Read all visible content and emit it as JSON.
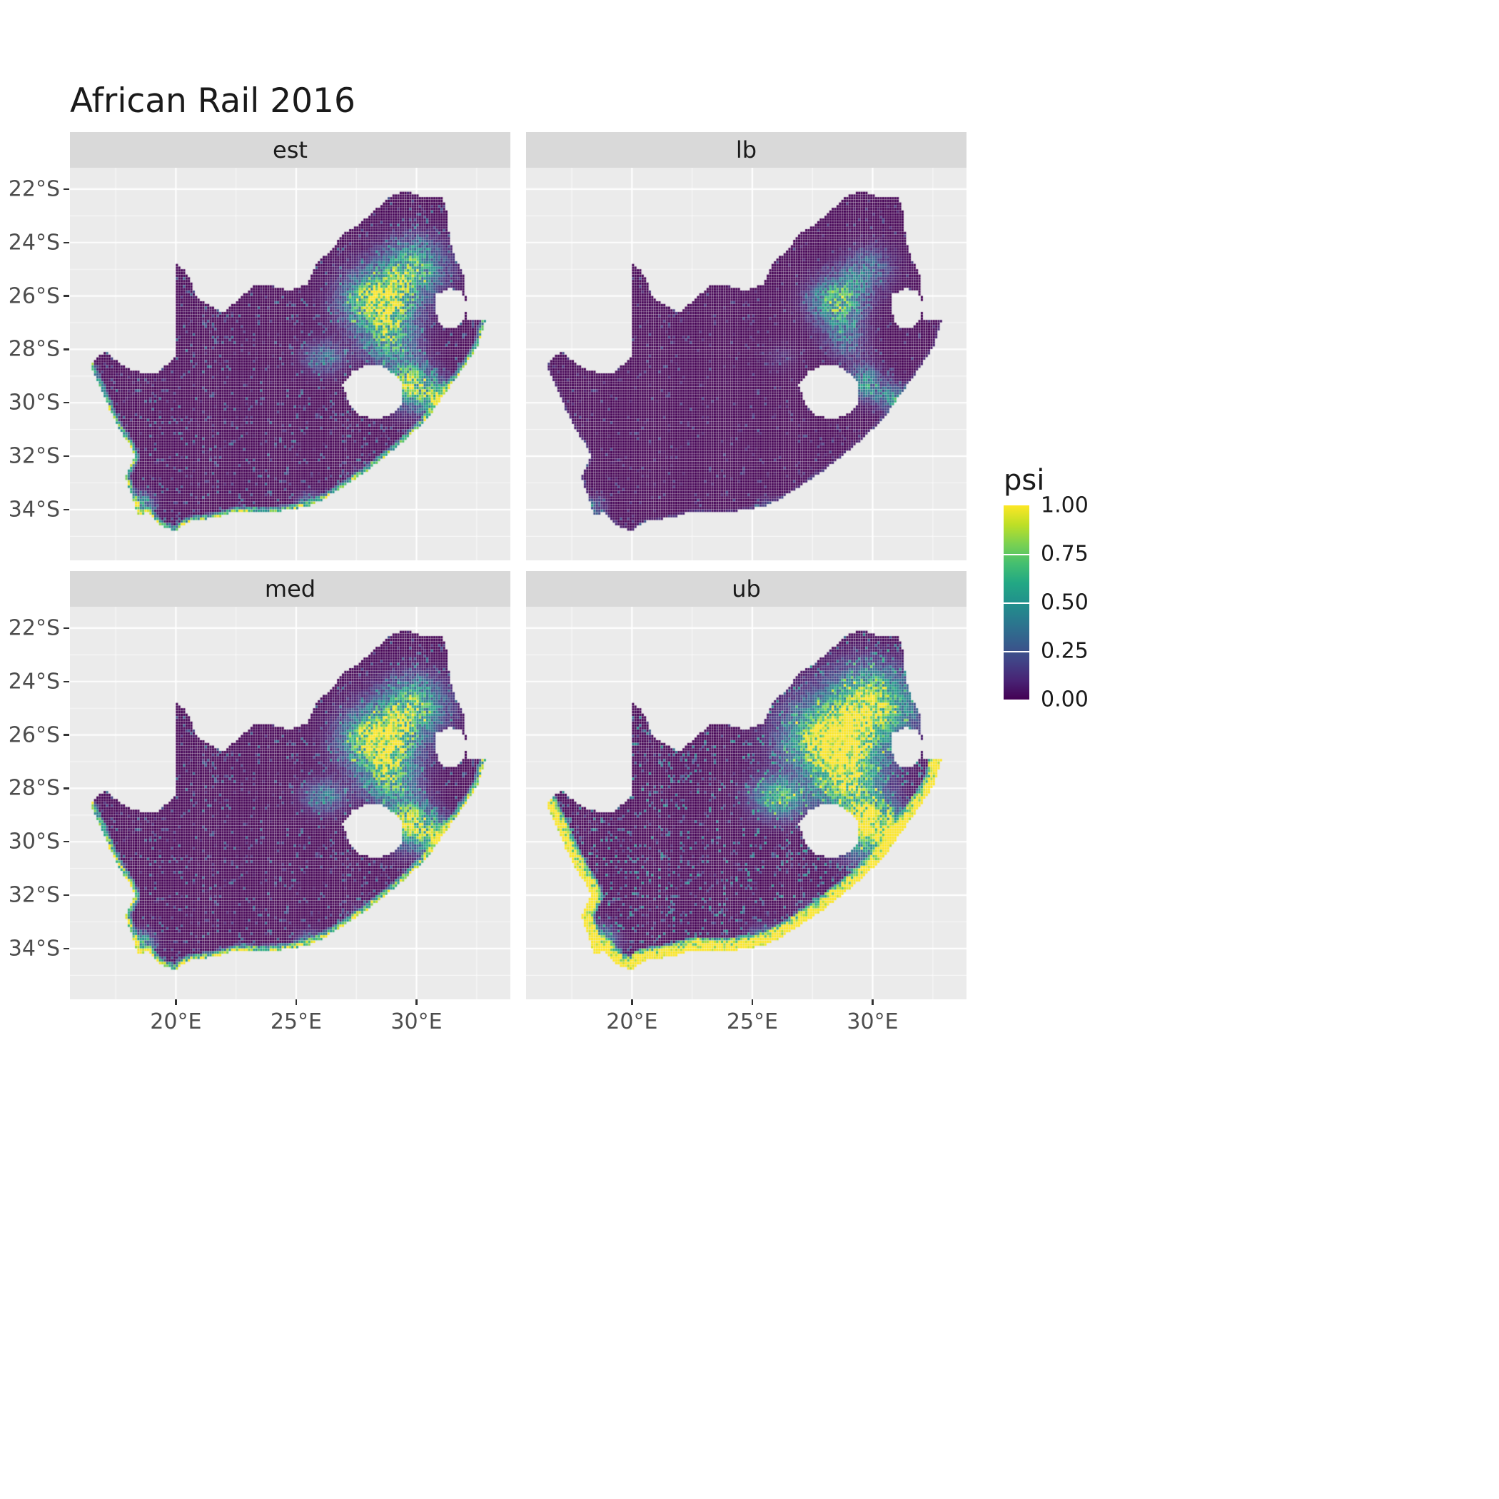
{
  "title": "African Rail 2016",
  "colors": {
    "background": "#FFFFFF",
    "panel_bg": "#EBEBEB",
    "strip_bg": "#D9D9D9",
    "gridline_major": "#FFFFFF",
    "gridline_minor": "rgba(255,255,255,0.7)",
    "axis_text": "#4D4D4D",
    "tick_mark": "#333333",
    "title_text": "#1A1A1A"
  },
  "chart_data": {
    "type": "heatmap",
    "subtype": "faceted_raster_map",
    "title": "African Rail 2016",
    "region": "South Africa",
    "facets": [
      "est",
      "lb",
      "med",
      "ub"
    ],
    "x": {
      "label": "",
      "range_deg": [
        15.6,
        33.9
      ],
      "ticks": [
        {
          "v": 20,
          "label": "20°E"
        },
        {
          "v": 25,
          "label": "25°E"
        },
        {
          "v": 30,
          "label": "30°E"
        }
      ],
      "minor_deg": [
        17.5,
        22.5,
        27.5,
        32.5
      ]
    },
    "y": {
      "label": "",
      "range_deg": [
        -35.9,
        -21.2
      ],
      "ticks": [
        {
          "v": -22,
          "label": "22°S"
        },
        {
          "v": -24,
          "label": "24°S"
        },
        {
          "v": -26,
          "label": "26°S"
        },
        {
          "v": -28,
          "label": "28°S"
        },
        {
          "v": -30,
          "label": "30°S"
        },
        {
          "v": -32,
          "label": "32°S"
        },
        {
          "v": -34,
          "label": "34°S"
        }
      ],
      "minor_deg": [
        -23,
        -25,
        -27,
        -29,
        -31,
        -33,
        -35
      ]
    },
    "legend": {
      "title": "psi",
      "position": "right",
      "range": [
        0,
        1
      ],
      "breaks": [
        {
          "v": 1.0,
          "label": "1.00"
        },
        {
          "v": 0.75,
          "label": "0.75"
        },
        {
          "v": 0.5,
          "label": "0.50"
        },
        {
          "v": 0.25,
          "label": "0.25"
        },
        {
          "v": 0.0,
          "label": "0.00"
        }
      ]
    },
    "palette": {
      "name": "viridis",
      "stops": [
        "#440154",
        "#482475",
        "#414487",
        "#355f8d",
        "#2a788e",
        "#21918c",
        "#22a884",
        "#44bf70",
        "#7ad151",
        "#bddf26",
        "#fde725"
      ]
    },
    "grid": {
      "step_deg": 0.1
    },
    "outline": [
      [
        16.45,
        -28.58
      ],
      [
        16.78,
        -28.25
      ],
      [
        17.1,
        -28.08
      ],
      [
        17.45,
        -28.35
      ],
      [
        17.95,
        -28.72
      ],
      [
        18.55,
        -28.85
      ],
      [
        19.2,
        -28.9
      ],
      [
        19.7,
        -28.52
      ],
      [
        19.98,
        -28.32
      ],
      [
        19.98,
        -24.77
      ],
      [
        20.32,
        -25.0
      ],
      [
        20.62,
        -25.42
      ],
      [
        20.78,
        -25.85
      ],
      [
        20.88,
        -26.12
      ],
      [
        21.45,
        -26.35
      ],
      [
        21.95,
        -26.65
      ],
      [
        22.62,
        -26.12
      ],
      [
        23.3,
        -25.58
      ],
      [
        24.0,
        -25.62
      ],
      [
        24.75,
        -25.8
      ],
      [
        25.45,
        -25.58
      ],
      [
        25.9,
        -24.72
      ],
      [
        26.5,
        -24.3
      ],
      [
        26.9,
        -23.68
      ],
      [
        27.55,
        -23.38
      ],
      [
        28.25,
        -22.82
      ],
      [
        29.05,
        -22.18
      ],
      [
        29.7,
        -22.1
      ],
      [
        30.3,
        -22.3
      ],
      [
        31.1,
        -22.34
      ],
      [
        31.3,
        -23.0
      ],
      [
        31.37,
        -23.82
      ],
      [
        31.62,
        -24.6
      ],
      [
        31.97,
        -25.22
      ],
      [
        32.02,
        -25.78
      ],
      [
        32.1,
        -26.35
      ],
      [
        32.13,
        -26.85
      ],
      [
        32.89,
        -26.86
      ],
      [
        32.55,
        -27.9
      ],
      [
        32.15,
        -28.45
      ],
      [
        31.65,
        -29.1
      ],
      [
        31.05,
        -29.85
      ],
      [
        30.6,
        -30.45
      ],
      [
        30.0,
        -31.0
      ],
      [
        29.35,
        -31.55
      ],
      [
        28.6,
        -32.1
      ],
      [
        27.9,
        -32.6
      ],
      [
        27.15,
        -33.05
      ],
      [
        26.45,
        -33.45
      ],
      [
        25.65,
        -33.85
      ],
      [
        25.0,
        -33.97
      ],
      [
        24.2,
        -34.07
      ],
      [
        23.4,
        -34.1
      ],
      [
        22.6,
        -34.05
      ],
      [
        21.8,
        -34.27
      ],
      [
        21.0,
        -34.4
      ],
      [
        20.5,
        -34.47
      ],
      [
        20.0,
        -34.82
      ],
      [
        19.4,
        -34.62
      ],
      [
        19.1,
        -34.36
      ],
      [
        18.8,
        -34.1
      ],
      [
        18.46,
        -34.22
      ],
      [
        18.32,
        -33.92
      ],
      [
        18.1,
        -33.3
      ],
      [
        17.9,
        -32.75
      ],
      [
        18.3,
        -32.05
      ],
      [
        18.1,
        -31.6
      ],
      [
        17.6,
        -30.9
      ],
      [
        17.25,
        -30.25
      ],
      [
        16.95,
        -29.55
      ],
      [
        16.6,
        -28.95
      ]
    ],
    "holes": [
      [
        [
          26.95,
          -29.35
        ],
        [
          27.35,
          -28.85
        ],
        [
          27.85,
          -28.6
        ],
        [
          28.5,
          -28.6
        ],
        [
          29.1,
          -28.95
        ],
        [
          29.45,
          -29.35
        ],
        [
          29.45,
          -29.95
        ],
        [
          29.05,
          -30.4
        ],
        [
          28.35,
          -30.65
        ],
        [
          27.65,
          -30.45
        ],
        [
          27.2,
          -30.0
        ]
      ],
      [
        [
          30.85,
          -25.95
        ],
        [
          31.35,
          -25.72
        ],
        [
          31.9,
          -25.85
        ],
        [
          32.08,
          -26.3
        ],
        [
          32.02,
          -26.85
        ],
        [
          31.65,
          -27.2
        ],
        [
          31.15,
          -27.25
        ],
        [
          30.88,
          -26.85
        ],
        [
          30.78,
          -26.4
        ]
      ]
    ],
    "coastline": [
      [
        32.89,
        -26.86
      ],
      [
        32.55,
        -27.9
      ],
      [
        32.15,
        -28.45
      ],
      [
        31.65,
        -29.1
      ],
      [
        31.05,
        -29.85
      ],
      [
        30.6,
        -30.45
      ],
      [
        30.0,
        -31.0
      ],
      [
        29.35,
        -31.55
      ],
      [
        28.6,
        -32.1
      ],
      [
        27.9,
        -32.6
      ],
      [
        27.15,
        -33.05
      ],
      [
        26.45,
        -33.45
      ],
      [
        25.65,
        -33.85
      ],
      [
        25.0,
        -33.97
      ],
      [
        24.2,
        -34.07
      ],
      [
        23.4,
        -34.1
      ],
      [
        22.6,
        -34.05
      ],
      [
        21.8,
        -34.27
      ],
      [
        21.0,
        -34.4
      ],
      [
        20.5,
        -34.47
      ],
      [
        20.0,
        -34.82
      ],
      [
        19.4,
        -34.62
      ],
      [
        19.1,
        -34.36
      ],
      [
        18.8,
        -34.1
      ],
      [
        18.46,
        -34.22
      ],
      [
        18.32,
        -33.92
      ],
      [
        18.1,
        -33.3
      ],
      [
        17.9,
        -32.75
      ],
      [
        18.3,
        -32.05
      ],
      [
        18.1,
        -31.6
      ],
      [
        17.6,
        -30.9
      ],
      [
        17.25,
        -30.25
      ],
      [
        16.95,
        -29.55
      ],
      [
        16.6,
        -28.95
      ],
      [
        16.45,
        -28.58
      ]
    ],
    "hotspots": [
      {
        "lon": 28.5,
        "lat": -26.2,
        "sx": 1.35,
        "sy": 1.05,
        "amp": 1.0
      },
      {
        "lon": 29.9,
        "lat": -24.9,
        "sx": 1.25,
        "sy": 0.95,
        "amp": 0.6
      },
      {
        "lon": 28.9,
        "lat": -27.7,
        "sx": 1.0,
        "sy": 0.8,
        "amp": 0.55
      },
      {
        "lon": 29.7,
        "lat": -29.3,
        "sx": 0.85,
        "sy": 0.8,
        "amp": 0.8
      },
      {
        "lon": 30.9,
        "lat": -29.85,
        "sx": 0.7,
        "sy": 0.6,
        "amp": 0.7
      },
      {
        "lon": 26.2,
        "lat": -28.3,
        "sx": 0.8,
        "sy": 0.55,
        "amp": 0.3
      },
      {
        "lon": 18.55,
        "lat": -33.85,
        "sx": 0.5,
        "sy": 0.4,
        "amp": 0.55
      },
      {
        "lon": 25.6,
        "lat": -33.8,
        "sx": 0.5,
        "sy": 0.35,
        "amp": 0.4
      },
      {
        "lon": 27.9,
        "lat": -32.95,
        "sx": 0.5,
        "sy": 0.4,
        "amp": 0.35
      }
    ],
    "facet_transforms": {
      "est": {
        "gamma": 1.0,
        "gain": 1.0,
        "a": 0.5,
        "b": 1.0,
        "coast_w": 0.85,
        "coast_thr": 0.22,
        "sp_thr": 0.9,
        "sp_amp": 0.35
      },
      "lb": {
        "gamma": 1.8,
        "gain": 0.95,
        "a": 0.3,
        "b": 0.75,
        "coast_w": 0.4,
        "coast_thr": 0.15,
        "sp_thr": 0.94,
        "sp_amp": 0.22
      },
      "med": {
        "gamma": 0.95,
        "gain": 1.05,
        "a": 0.55,
        "b": 1.0,
        "coast_w": 0.9,
        "coast_thr": 0.25,
        "sp_thr": 0.9,
        "sp_amp": 0.35
      },
      "ub": {
        "gamma": 0.55,
        "gain": 1.25,
        "a": 0.6,
        "b": 0.75,
        "coast_w": 1.3,
        "coast_thr": 0.5,
        "sp_thr": 0.86,
        "sp_amp": 0.5
      }
    },
    "pattern_notes": "Occupancy (psi) raster over South Africa in four facets. Highest psi around Gauteng/Mpumalanga (about 26-28S, 27-31E), along the KwaZulu-Natal coast and in a narrow band along the entire coastline; lowest across the arid interior (Northern Cape / Karoo). lb is uniformly darker than est/med; ub saturates much of the east and the coastal belt near psi = 1. Lesotho and Eswatini appear as holes with no data."
  }
}
